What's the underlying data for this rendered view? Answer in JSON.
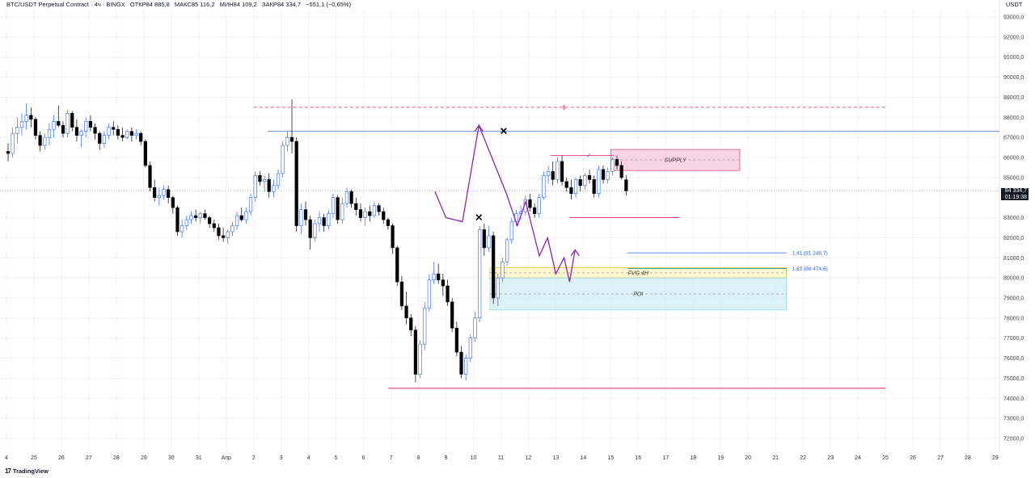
{
  "header": {
    "symbol": "BTC/USDT Perpetual Contract · 4ч · BINGX",
    "open": "ОТКР84 885,8",
    "high": "МАКС85 116,2",
    "low": "МИН84 109,2",
    "close": "ЗАКР84 334,7",
    "change": "−551,1 (−0,65%)"
  },
  "currency": "USDT",
  "price_tag": {
    "price": "84 334,7",
    "timer": "01:19:38"
  },
  "logo": {
    "mark": "17",
    "text": "TradingView"
  },
  "colors": {
    "up": "#2962ff",
    "down": "#000000",
    "supply_fill": "#f7c5dc",
    "fvg_fill": "#fff4c0",
    "poi_fill": "#cdeef6",
    "path": "#8e24aa",
    "magenta": "#e91e63"
  },
  "chart_data": {
    "type": "candlestick",
    "y_axis": {
      "min": 71500,
      "max": 93500,
      "ticks": [
        {
          "value": 93000,
          "label": "93000,0"
        },
        {
          "value": 92000,
          "label": "92000,0"
        },
        {
          "value": 91000,
          "label": "91000,0"
        },
        {
          "value": 90000,
          "label": "90000,0"
        },
        {
          "value": 89000,
          "label": "89000,0"
        },
        {
          "value": 88000,
          "label": "88000,0"
        },
        {
          "value": 87000,
          "label": "87000,0"
        },
        {
          "value": 86000,
          "label": "86000,0"
        },
        {
          "value": 85000,
          "label": "85000,0"
        },
        {
          "value": 83000,
          "label": "83000,0"
        },
        {
          "value": 82000,
          "label": "82000,0"
        },
        {
          "value": 81000,
          "label": "81000,0"
        },
        {
          "value": 80000,
          "label": "80000,0"
        },
        {
          "value": 79000,
          "label": "79000,0"
        },
        {
          "value": 78000,
          "label": "78000,0"
        },
        {
          "value": 77000,
          "label": "77000,0"
        },
        {
          "value": 76000,
          "label": "76000,0"
        },
        {
          "value": 75000,
          "label": "75000,0"
        },
        {
          "value": 74000,
          "label": "74000,0"
        },
        {
          "value": 73000,
          "label": "73000,0"
        },
        {
          "value": 72000,
          "label": "72000,0"
        }
      ]
    },
    "x_axis": {
      "labels": [
        "4",
        "25",
        "26",
        "27",
        "28",
        "29",
        "30",
        "31",
        "Апр",
        "2",
        "3",
        "4",
        "5",
        "6",
        "7",
        "8",
        "9",
        "10",
        "11",
        "12",
        "13",
        "14",
        "15",
        "16",
        "17",
        "18",
        "19",
        "20",
        "21",
        "22",
        "23",
        "24",
        "25",
        "26",
        "27",
        "28",
        "29"
      ]
    },
    "current_price": 84334.7,
    "levels": [
      {
        "name": "liquidity",
        "value": 88500,
        "label": "$"
      },
      {
        "name": "resistance",
        "value": 87300
      },
      {
        "name": "low-line",
        "value": 74500
      },
      {
        "name": "local-low",
        "value": 83000
      }
    ],
    "zones": [
      {
        "name": "SUPPLY",
        "label": "SUPPLY",
        "from": 85350,
        "to": 86400
      },
      {
        "name": "FVG 4H",
        "label": "FVG 4H",
        "from": 80000,
        "to": 80500
      },
      {
        "name": "POI",
        "label": "POI",
        "from": 78400,
        "to": 80000
      }
    ],
    "fib_levels": [
      {
        "label": "1,41 (81 248,7)",
        "value": 81248.7
      },
      {
        "label": "1,62 (80 474,6)",
        "value": 80474.6
      }
    ],
    "candles_4h": [
      [
        86300,
        86700,
        85800,
        86200
      ],
      [
        86200,
        87500,
        86000,
        87200
      ],
      [
        87200,
        88000,
        86700,
        87500
      ],
      [
        87500,
        88200,
        87100,
        87800
      ],
      [
        87800,
        88700,
        87400,
        88100
      ],
      [
        88100,
        88500,
        87500,
        87900
      ],
      [
        87900,
        88000,
        86900,
        87100
      ],
      [
        87100,
        87300,
        86300,
        86600
      ],
      [
        86600,
        87200,
        86400,
        87000
      ],
      [
        87000,
        87700,
        86600,
        87400
      ],
      [
        87400,
        88100,
        87000,
        87800
      ],
      [
        87800,
        88600,
        87500,
        87600
      ],
      [
        87600,
        87800,
        87000,
        87200
      ],
      [
        87200,
        88400,
        87000,
        88200
      ],
      [
        88200,
        88300,
        87300,
        87500
      ],
      [
        87500,
        87900,
        86800,
        87100
      ],
      [
        87100,
        87400,
        86500,
        87300
      ],
      [
        87300,
        88000,
        87000,
        87800
      ],
      [
        87800,
        88100,
        87300,
        87500
      ],
      [
        87500,
        87700,
        86900,
        87200
      ],
      [
        87200,
        87300,
        86400,
        86700
      ],
      [
        86700,
        87300,
        86500,
        87100
      ],
      [
        87100,
        87700,
        86900,
        87500
      ],
      [
        87500,
        87800,
        87100,
        87400
      ],
      [
        87400,
        87600,
        86900,
        87100
      ],
      [
        87100,
        87500,
        86800,
        87000
      ],
      [
        87000,
        87400,
        86900,
        87300
      ],
      [
        87300,
        87500,
        86800,
        87100
      ],
      [
        87100,
        87400,
        86900,
        87200
      ],
      [
        87200,
        87300,
        86600,
        86800
      ],
      [
        86800,
        86900,
        85500,
        85600
      ],
      [
        85600,
        85800,
        84300,
        84500
      ],
      [
        84500,
        84900,
        83800,
        84000
      ],
      [
        84000,
        84500,
        83600,
        84100
      ],
      [
        84100,
        84600,
        83900,
        84400
      ],
      [
        84400,
        84600,
        83700,
        84000
      ],
      [
        84000,
        84100,
        83200,
        83500
      ],
      [
        83500,
        83600,
        82100,
        82300
      ],
      [
        82300,
        82900,
        82000,
        82600
      ],
      [
        82600,
        83100,
        82400,
        82900
      ],
      [
        82900,
        83300,
        82700,
        83100
      ],
      [
        83100,
        83400,
        82800,
        83000
      ],
      [
        83000,
        83300,
        82700,
        83200
      ],
      [
        83200,
        83400,
        82900,
        83000
      ],
      [
        83000,
        83100,
        82500,
        82700
      ],
      [
        82700,
        82900,
        82300,
        82500
      ],
      [
        82500,
        82700,
        81900,
        82100
      ],
      [
        82100,
        82500,
        81800,
        82000
      ],
      [
        82000,
        82400,
        81700,
        82300
      ],
      [
        82300,
        82800,
        82100,
        82600
      ],
      [
        82600,
        83300,
        82400,
        83100
      ],
      [
        83100,
        83500,
        82800,
        82900
      ],
      [
        82900,
        83500,
        82700,
        83300
      ],
      [
        83300,
        84200,
        83100,
        84000
      ],
      [
        84000,
        85300,
        83800,
        85100
      ],
      [
        85100,
        85300,
        84600,
        84800
      ],
      [
        84800,
        85100,
        84300,
        84900
      ],
      [
        84900,
        85200,
        84000,
        84300
      ],
      [
        84300,
        84900,
        84000,
        84600
      ],
      [
        84600,
        85400,
        84400,
        85200
      ],
      [
        85200,
        86800,
        85000,
        86600
      ],
      [
        86600,
        87300,
        86300,
        87000
      ],
      [
        87000,
        88900,
        86200,
        86800
      ],
      [
        86800,
        87000,
        82300,
        82600
      ],
      [
        82600,
        83700,
        82200,
        83400
      ],
      [
        83400,
        83800,
        82600,
        82900
      ],
      [
        82900,
        83100,
        81400,
        82000
      ],
      [
        82000,
        82900,
        81800,
        82700
      ],
      [
        82700,
        83300,
        82300,
        83000
      ],
      [
        83000,
        83200,
        82300,
        82600
      ],
      [
        82600,
        83400,
        82400,
        83200
      ],
      [
        83200,
        84200,
        83000,
        84000
      ],
      [
        84000,
        84100,
        82700,
        82900
      ],
      [
        82900,
        84000,
        82700,
        83700
      ],
      [
        83700,
        84500,
        83500,
        84300
      ],
      [
        84300,
        84400,
        83500,
        83700
      ],
      [
        83700,
        84000,
        83100,
        83400
      ],
      [
        83400,
        83700,
        82800,
        83000
      ],
      [
        83000,
        83500,
        82600,
        83300
      ],
      [
        83300,
        83600,
        82800,
        83100
      ],
      [
        83100,
        83800,
        83000,
        83600
      ],
      [
        83600,
        83700,
        83100,
        83300
      ],
      [
        83300,
        83500,
        82700,
        82900
      ],
      [
        82900,
        83000,
        82400,
        82600
      ],
      [
        82600,
        82700,
        81200,
        81500
      ],
      [
        81500,
        81600,
        79600,
        79800
      ],
      [
        79800,
        80100,
        78400,
        78600
      ],
      [
        78600,
        79300,
        77700,
        78000
      ],
      [
        78000,
        78200,
        77100,
        77400
      ],
      [
        77400,
        77600,
        74800,
        75200
      ],
      [
        75200,
        76900,
        75000,
        76700
      ],
      [
        76700,
        78800,
        76400,
        78500
      ],
      [
        78500,
        80200,
        78300,
        79900
      ],
      [
        79900,
        80800,
        79700,
        80200
      ],
      [
        80200,
        80700,
        79700,
        79900
      ],
      [
        79900,
        80200,
        79100,
        79600
      ],
      [
        79600,
        79900,
        78600,
        78800
      ],
      [
        78800,
        79000,
        77300,
        77500
      ],
      [
        77500,
        77800,
        76100,
        76300
      ],
      [
        76300,
        76600,
        75000,
        75200
      ],
      [
        75200,
        76200,
        74900,
        76000
      ],
      [
        76000,
        77200,
        75800,
        77000
      ],
      [
        77000,
        78300,
        76800,
        78000
      ],
      [
        78000,
        82600,
        77800,
        82400
      ],
      [
        82400,
        82700,
        81100,
        81500
      ],
      [
        81500,
        82600,
        81300,
        82100
      ],
      [
        82100,
        82300,
        78700,
        79000
      ],
      [
        79000,
        80200,
        78600,
        80000
      ],
      [
        80000,
        81000,
        79800,
        80800
      ],
      [
        80800,
        82000,
        80600,
        81900
      ],
      [
        81900,
        83000,
        81700,
        82800
      ],
      [
        82800,
        83400,
        82600,
        83200
      ],
      [
        83200,
        83600,
        82900,
        83300
      ],
      [
        83300,
        84100,
        83100,
        83900
      ],
      [
        83900,
        84200,
        83300,
        83500
      ],
      [
        83500,
        83700,
        83000,
        83200
      ],
      [
        83200,
        84200,
        83000,
        84000
      ],
      [
        84000,
        85300,
        83900,
        85100
      ],
      [
        85100,
        85600,
        84700,
        85300
      ],
      [
        85300,
        85800,
        84600,
        84900
      ],
      [
        84900,
        86000,
        84700,
        85800
      ],
      [
        85800,
        86100,
        84600,
        84800
      ],
      [
        84800,
        85000,
        84300,
        84500
      ],
      [
        84500,
        84900,
        83900,
        84200
      ],
      [
        84200,
        85000,
        84000,
        84900
      ],
      [
        84900,
        85100,
        84300,
        84600
      ],
      [
        84600,
        85200,
        84400,
        85100
      ],
      [
        85100,
        85400,
        84700,
        84900
      ],
      [
        84900,
        85100,
        84000,
        84200
      ],
      [
        84200,
        85600,
        84000,
        85400
      ],
      [
        85400,
        85600,
        84700,
        84900
      ],
      [
        84900,
        85500,
        84700,
        85300
      ],
      [
        85300,
        86000,
        85100,
        85900
      ],
      [
        85900,
        86100,
        85400,
        85600
      ],
      [
        85600,
        85800,
        84900,
        85000
      ],
      [
        84885.8,
        85116.2,
        84109.2,
        84334.7
      ]
    ],
    "projection_path": [
      [
        15.6,
        84300
      ],
      [
        16.0,
        83000
      ],
      [
        16.6,
        82800
      ],
      [
        17.2,
        87600
      ],
      [
        18.2,
        84200
      ],
      [
        18.6,
        82600
      ],
      [
        18.9,
        83800
      ],
      [
        19.4,
        81100
      ],
      [
        19.7,
        82000
      ],
      [
        20.0,
        80200
      ],
      [
        20.3,
        81000
      ],
      [
        20.5,
        79800
      ],
      [
        20.7,
        81400
      ]
    ],
    "markers": [
      {
        "symbol": "✕",
        "day": 18.1,
        "value": 87300
      },
      {
        "symbol": "✕",
        "day": 17.2,
        "value": 83000
      }
    ]
  }
}
